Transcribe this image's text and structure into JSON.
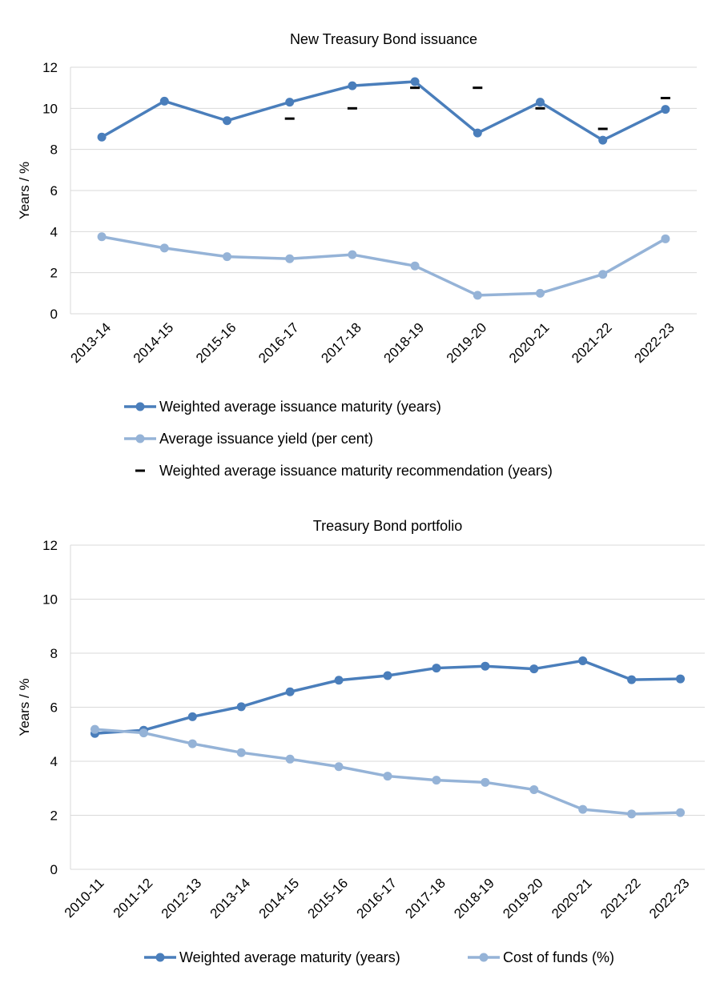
{
  "colors": {
    "dark_blue": "#4a7ebb",
    "light_blue": "#95b3d7",
    "recommendation": "#000000",
    "grid": "#d9d9d9"
  },
  "chart_data": [
    {
      "type": "line",
      "title": "New Treasury Bond issuance",
      "ylabel": "Years / %",
      "ylim": [
        0,
        12
      ],
      "yticks": [
        0,
        2,
        4,
        6,
        8,
        10,
        12
      ],
      "grid": true,
      "categories": [
        "2013-14",
        "2014-15",
        "2015-16",
        "2016-17",
        "2017-18",
        "2018-19",
        "2019-20",
        "2020-21",
        "2021-22",
        "2022-23"
      ],
      "series": [
        {
          "name": "Weighted average issuance maturity (years)",
          "style": "line-marker",
          "color": "#4a7ebb",
          "values": [
            8.6,
            10.35,
            9.4,
            10.3,
            11.1,
            11.3,
            8.8,
            10.3,
            8.45,
            9.95
          ]
        },
        {
          "name": "Average issuance yield (per cent)",
          "style": "line-marker",
          "color": "#95b3d7",
          "values": [
            3.75,
            3.2,
            2.78,
            2.68,
            2.88,
            2.33,
            0.9,
            1.0,
            1.92,
            3.65
          ]
        },
        {
          "name": "Weighted average issuance maturity recommendation (years)",
          "style": "dash",
          "color": "#000000",
          "values": [
            null,
            null,
            null,
            9.5,
            10.0,
            11.0,
            11.0,
            10.0,
            9.0,
            10.5
          ]
        }
      ]
    },
    {
      "type": "line",
      "title": "Treasury Bond portfolio",
      "ylabel": "Years / %",
      "ylim": [
        0,
        12
      ],
      "yticks": [
        0,
        2,
        4,
        6,
        8,
        10,
        12
      ],
      "grid": true,
      "categories": [
        "2010-11",
        "2011-12",
        "2012-13",
        "2013-14",
        "2014-15",
        "2015-16",
        "2016-17",
        "2017-18",
        "2018-19",
        "2019-20",
        "2020-21",
        "2021-22",
        "2022-23"
      ],
      "series": [
        {
          "name": "Weighted average maturity (years)",
          "style": "line-marker",
          "color": "#4a7ebb",
          "values": [
            5.03,
            5.15,
            5.65,
            6.02,
            6.57,
            7.0,
            7.17,
            7.45,
            7.52,
            7.42,
            7.72,
            7.02,
            7.05
          ]
        },
        {
          "name": "Cost of funds (%)",
          "style": "line-marker",
          "color": "#95b3d7",
          "values": [
            5.18,
            5.05,
            4.65,
            4.32,
            4.08,
            3.8,
            3.45,
            3.3,
            3.22,
            2.95,
            2.22,
            2.05,
            2.1
          ]
        }
      ]
    }
  ]
}
